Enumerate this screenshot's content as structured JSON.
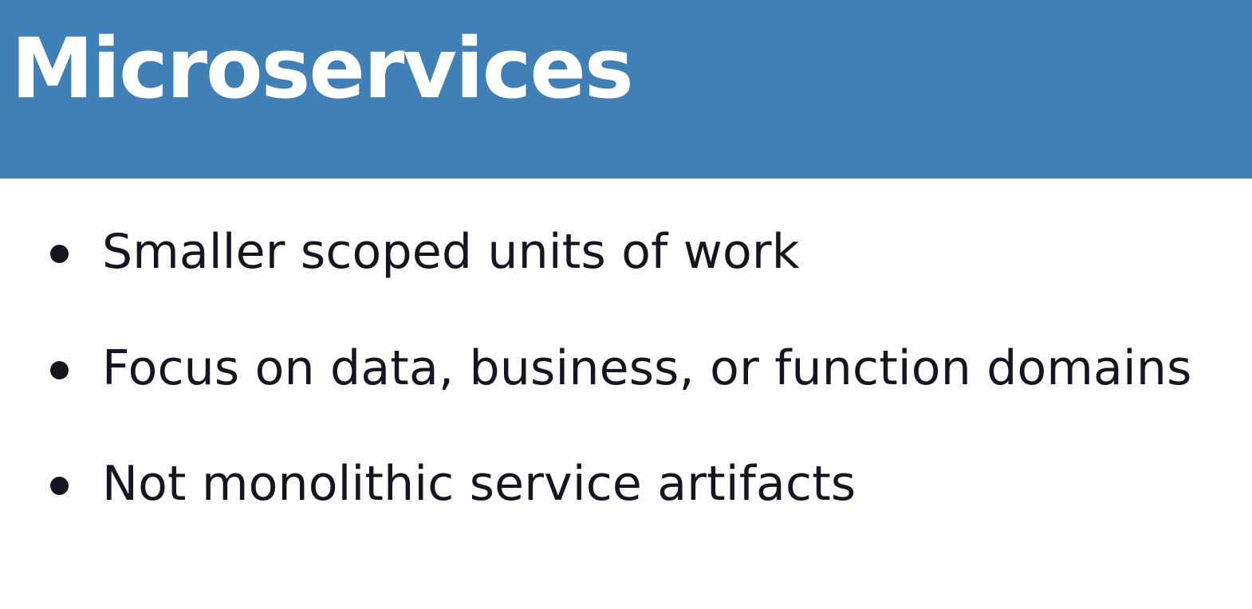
{
  "slide": {
    "title": "Microservices",
    "bullets": [
      "Smaller scoped units of work",
      "Focus on data, business, or function domains",
      "Not monolithic service artifacts"
    ]
  },
  "colors": {
    "title_bar": "#417fb7",
    "title_text": "#ffffff",
    "body_text": "#15151f",
    "background": "#fdfdfd"
  }
}
